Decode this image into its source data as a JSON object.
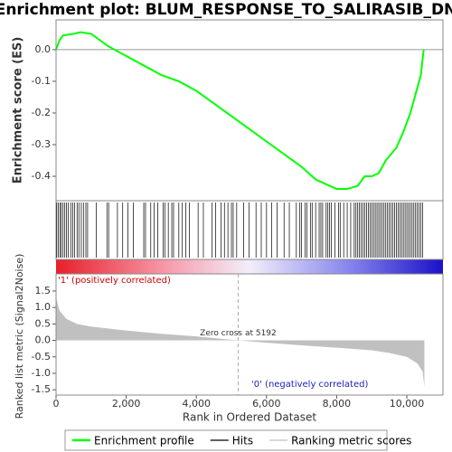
{
  "chart_data": [
    {
      "type": "line",
      "title": "Enrichment plot: BLUM_RESPONSE_TO_SALIRASIB_DN",
      "ylabel": "Enrichment score (ES)",
      "xlim": [
        0,
        11030
      ],
      "ylim": [
        -0.477,
        0.094
      ],
      "yticks": [
        {
          "value": 0,
          "label": "0.0"
        },
        -0.1,
        -0.2,
        -0.3,
        -0.4
      ],
      "x": [
        0,
        100,
        200,
        500,
        700,
        1000,
        1500,
        2000,
        2500,
        3000,
        3500,
        4000,
        4500,
        5000,
        5500,
        6000,
        6500,
        7000,
        7400,
        7800,
        8000,
        8300,
        8600,
        8800,
        9000,
        9200,
        9400,
        9700,
        9900,
        10100,
        10300,
        10400,
        10480
      ],
      "series": [
        {
          "name": "Enrichment profile",
          "color": "#00ff00",
          "values": [
            0.0,
            0.03,
            0.045,
            0.05,
            0.055,
            0.05,
            0.01,
            -0.02,
            -0.05,
            -0.08,
            -0.1,
            -0.13,
            -0.17,
            -0.21,
            -0.25,
            -0.29,
            -0.33,
            -0.37,
            -0.41,
            -0.43,
            -0.44,
            -0.44,
            -0.43,
            -0.4,
            -0.4,
            -0.39,
            -0.35,
            -0.31,
            -0.26,
            -0.2,
            -0.12,
            -0.08,
            0.0
          ]
        }
      ]
    },
    {
      "type": "rug",
      "xlim": [
        0,
        11030
      ],
      "series": [
        {
          "name": "Hits",
          "color": "#000000",
          "x": [
            20,
            60,
            110,
            150,
            200,
            250,
            300,
            350,
            420,
            480,
            530,
            600,
            650,
            720,
            780,
            850,
            900,
            1150,
            1450,
            1500,
            1750,
            1900,
            2050,
            2200,
            2500,
            2550,
            2700,
            2800,
            2900,
            3050,
            3100,
            3200,
            3300,
            3350,
            3500,
            3600,
            3700,
            3800,
            4050,
            4200,
            4450,
            4550,
            4700,
            4800,
            4900,
            5000,
            5050,
            5150,
            5350,
            5500,
            5700,
            5850,
            6000,
            6150,
            6300,
            6500,
            6650,
            6850,
            6950,
            7000,
            7100,
            7150,
            7250,
            7300,
            7400,
            7500,
            7550,
            7600,
            7700,
            7750,
            7800,
            7850,
            7950,
            8050,
            8100,
            8200,
            8300,
            8400,
            8500,
            8550,
            8600,
            8650,
            8700,
            8750,
            8800,
            8850,
            8900,
            8950,
            9000,
            9050,
            9100,
            9150,
            9200,
            9250,
            9300,
            9350,
            9400,
            9450,
            9500,
            9550,
            9600,
            9650,
            9700,
            9750,
            9800,
            9850,
            9900,
            9950,
            10000,
            10050,
            10100,
            10150,
            10200,
            10250,
            10300,
            10350,
            10400,
            10450
          ]
        }
      ]
    },
    {
      "type": "area",
      "ylabel": "Ranked list metric (Signal2Noise)",
      "xlabel": "Rank in Ordered Dataset",
      "annotation": "Zero cross at 5192",
      "zero_cross": 5192,
      "pos_label": "'1' (positively correlated)",
      "neg_label": "'0' (negatively correlated)",
      "xlim": [
        0,
        11030
      ],
      "ylim": [
        -1.66,
        2.02
      ],
      "xticks": [
        0,
        {
          "value": 2000,
          "label": "2,000"
        },
        {
          "value": 4000,
          "label": "4,000"
        },
        {
          "value": 6000,
          "label": "6,000"
        },
        {
          "value": 8000,
          "label": "8,000"
        },
        {
          "value": 10000,
          "label": "10,000"
        }
      ],
      "yticks": [
        1.5,
        {
          "value": 1,
          "label": "1.0"
        },
        0.5,
        {
          "value": 0,
          "label": "0.0"
        },
        -0.5,
        {
          "value": -1,
          "label": "-1.0"
        },
        -1.5
      ],
      "x": [
        0,
        100,
        300,
        600,
        1000,
        2000,
        3000,
        4000,
        5192,
        6000,
        7000,
        8000,
        9000,
        9500,
        10000,
        10300,
        10450,
        10500
      ],
      "series": [
        {
          "name": "Ranking metric scores",
          "color": "#c0c0c0",
          "values": [
            1.3,
            0.9,
            0.65,
            0.5,
            0.42,
            0.3,
            0.2,
            0.12,
            0.0,
            -0.07,
            -0.15,
            -0.22,
            -0.3,
            -0.38,
            -0.5,
            -0.7,
            -0.95,
            -1.4
          ]
        }
      ]
    }
  ]
}
